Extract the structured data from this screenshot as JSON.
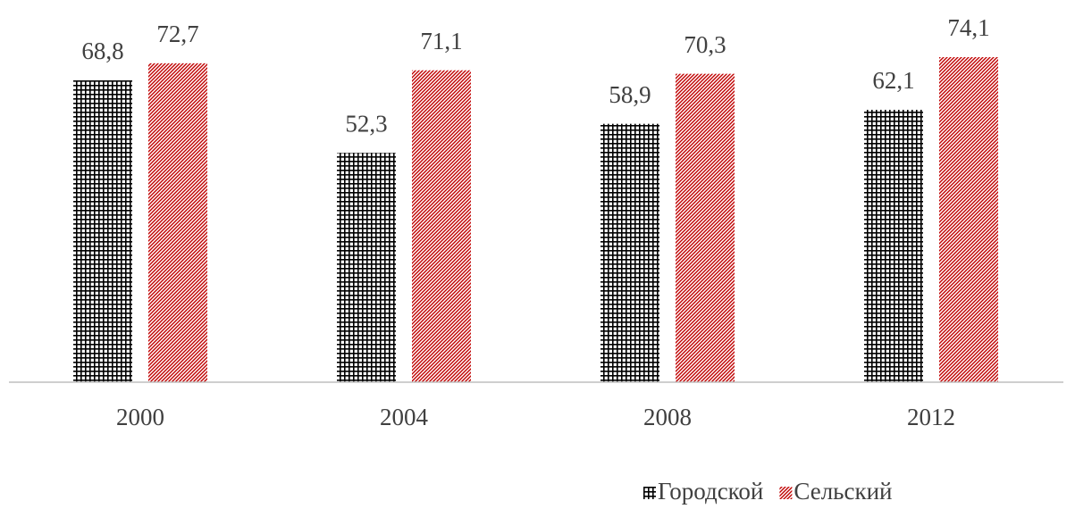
{
  "chart_data": {
    "type": "bar",
    "categories": [
      "2000",
      "2004",
      "2008",
      "2012"
    ],
    "series": [
      {
        "name": "Городской",
        "color": "#000000",
        "pattern": "grid",
        "values": [
          68.8,
          52.3,
          58.9,
          62.1
        ],
        "value_labels": [
          "68,8",
          "52,3",
          "58,9",
          "62,1"
        ]
      },
      {
        "name": "Сельский",
        "color": "#c00000",
        "pattern": "diagonal",
        "values": [
          72.7,
          71.1,
          70.3,
          74.1
        ],
        "value_labels": [
          "72,7",
          "71,1",
          "70,3",
          "74,1"
        ]
      }
    ],
    "ylim": [
      0,
      80
    ],
    "legend": "bottom-right"
  }
}
